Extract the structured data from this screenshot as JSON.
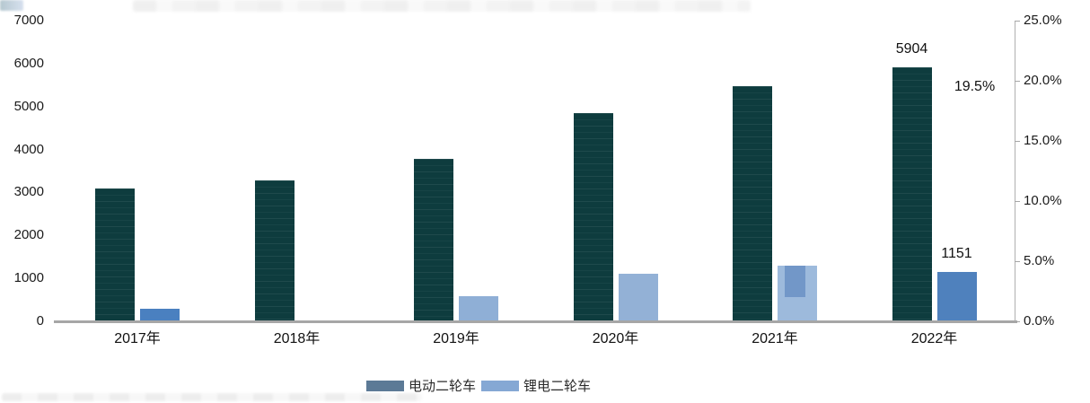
{
  "chart_data": {
    "type": "bar",
    "categories": [
      "2017年",
      "2018年",
      "2019年",
      "2020年",
      "2021年",
      "2022年"
    ],
    "series": [
      {
        "name": "电动二轮车",
        "axis": "left",
        "color": "#0e3c3e",
        "legend_color": "#5c7a96",
        "values": [
          3100,
          3280,
          3790,
          4840,
          5470,
          5904
        ]
      },
      {
        "name": "锂电二轮车",
        "axis": "left",
        "color": "#4f81bd",
        "legend_color": "#85a8d4",
        "values": [
          295,
          0,
          590,
          1110,
          1300,
          1151
        ],
        "bar_colors": [
          "#4a80c0",
          "#4a80c0",
          "#8fafd6",
          "#93b1d6",
          "#9dbadc",
          "#4f81bd"
        ]
      }
    ],
    "data_labels": [
      {
        "text": "5904",
        "series": 0,
        "index": 5
      },
      {
        "text": "1151",
        "series": 1,
        "index": 5
      }
    ],
    "annotations": [
      {
        "text": "19.5%",
        "axis": "right",
        "value": 19.5
      }
    ],
    "left_axis": {
      "min": 0,
      "max": 7000,
      "ticks": [
        0,
        1000,
        2000,
        3000,
        4000,
        5000,
        6000,
        7000
      ]
    },
    "right_axis": {
      "min": 0,
      "max": 25,
      "tick_values": [
        0,
        5,
        10,
        15,
        20,
        25
      ],
      "tick_labels": [
        "0.0%",
        "5.0%",
        "10.0%",
        "15.0%",
        "20.0%",
        "25.0%"
      ]
    },
    "legend": {
      "position": "bottom",
      "items": [
        {
          "label": "电动二轮车",
          "color": "#5c7a96"
        },
        {
          "label": "锂电二轮车",
          "color": "#85a8d4"
        }
      ]
    },
    "grid": false
  }
}
